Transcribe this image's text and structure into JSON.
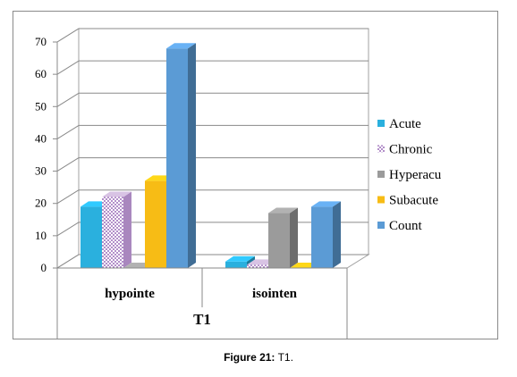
{
  "caption": {
    "label": "Figure 21:",
    "text": "T1."
  },
  "chart_data": {
    "type": "bar",
    "style": "3d-clustered-column",
    "categories": [
      "hypointe",
      "isointen"
    ],
    "group_label": "T1",
    "series": [
      {
        "name": "Acute",
        "values": [
          19,
          2
        ],
        "color": "#2ab0de"
      },
      {
        "name": "Chronic",
        "values": [
          22,
          1
        ],
        "color": "#c9a7d8",
        "pattern": "dotted"
      },
      {
        "name": "Hyperacu",
        "values": [
          0,
          17
        ],
        "color": "#9b9b9b"
      },
      {
        "name": "Subacute",
        "values": [
          27,
          0
        ],
        "color": "#f7bc15"
      },
      {
        "name": "Count",
        "values": [
          68,
          19
        ],
        "color": "#5b9bd5"
      }
    ],
    "ylim": [
      0,
      70
    ],
    "yticks": [
      0,
      10,
      20,
      30,
      40,
      50,
      60,
      70
    ],
    "grid": true,
    "legend": "right",
    "title": "",
    "xlabel": "",
    "ylabel": ""
  }
}
